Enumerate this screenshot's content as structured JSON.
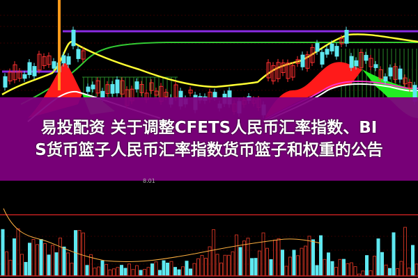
{
  "headline": {
    "line1": "易投配资 关于调整CFETS人民币汇率指数、BI",
    "line2": "S货币篮子人民币汇率指数货币篮子和权重的公告"
  },
  "chart_labels": {
    "price_marker": "8.01"
  },
  "colors": {
    "band": "#800080",
    "up": "#ff2020",
    "down": "#5ee8f0",
    "ma_yellow": "#ffff33",
    "ma_green": "#33cc33",
    "line_purple": "#8a2be2"
  }
}
